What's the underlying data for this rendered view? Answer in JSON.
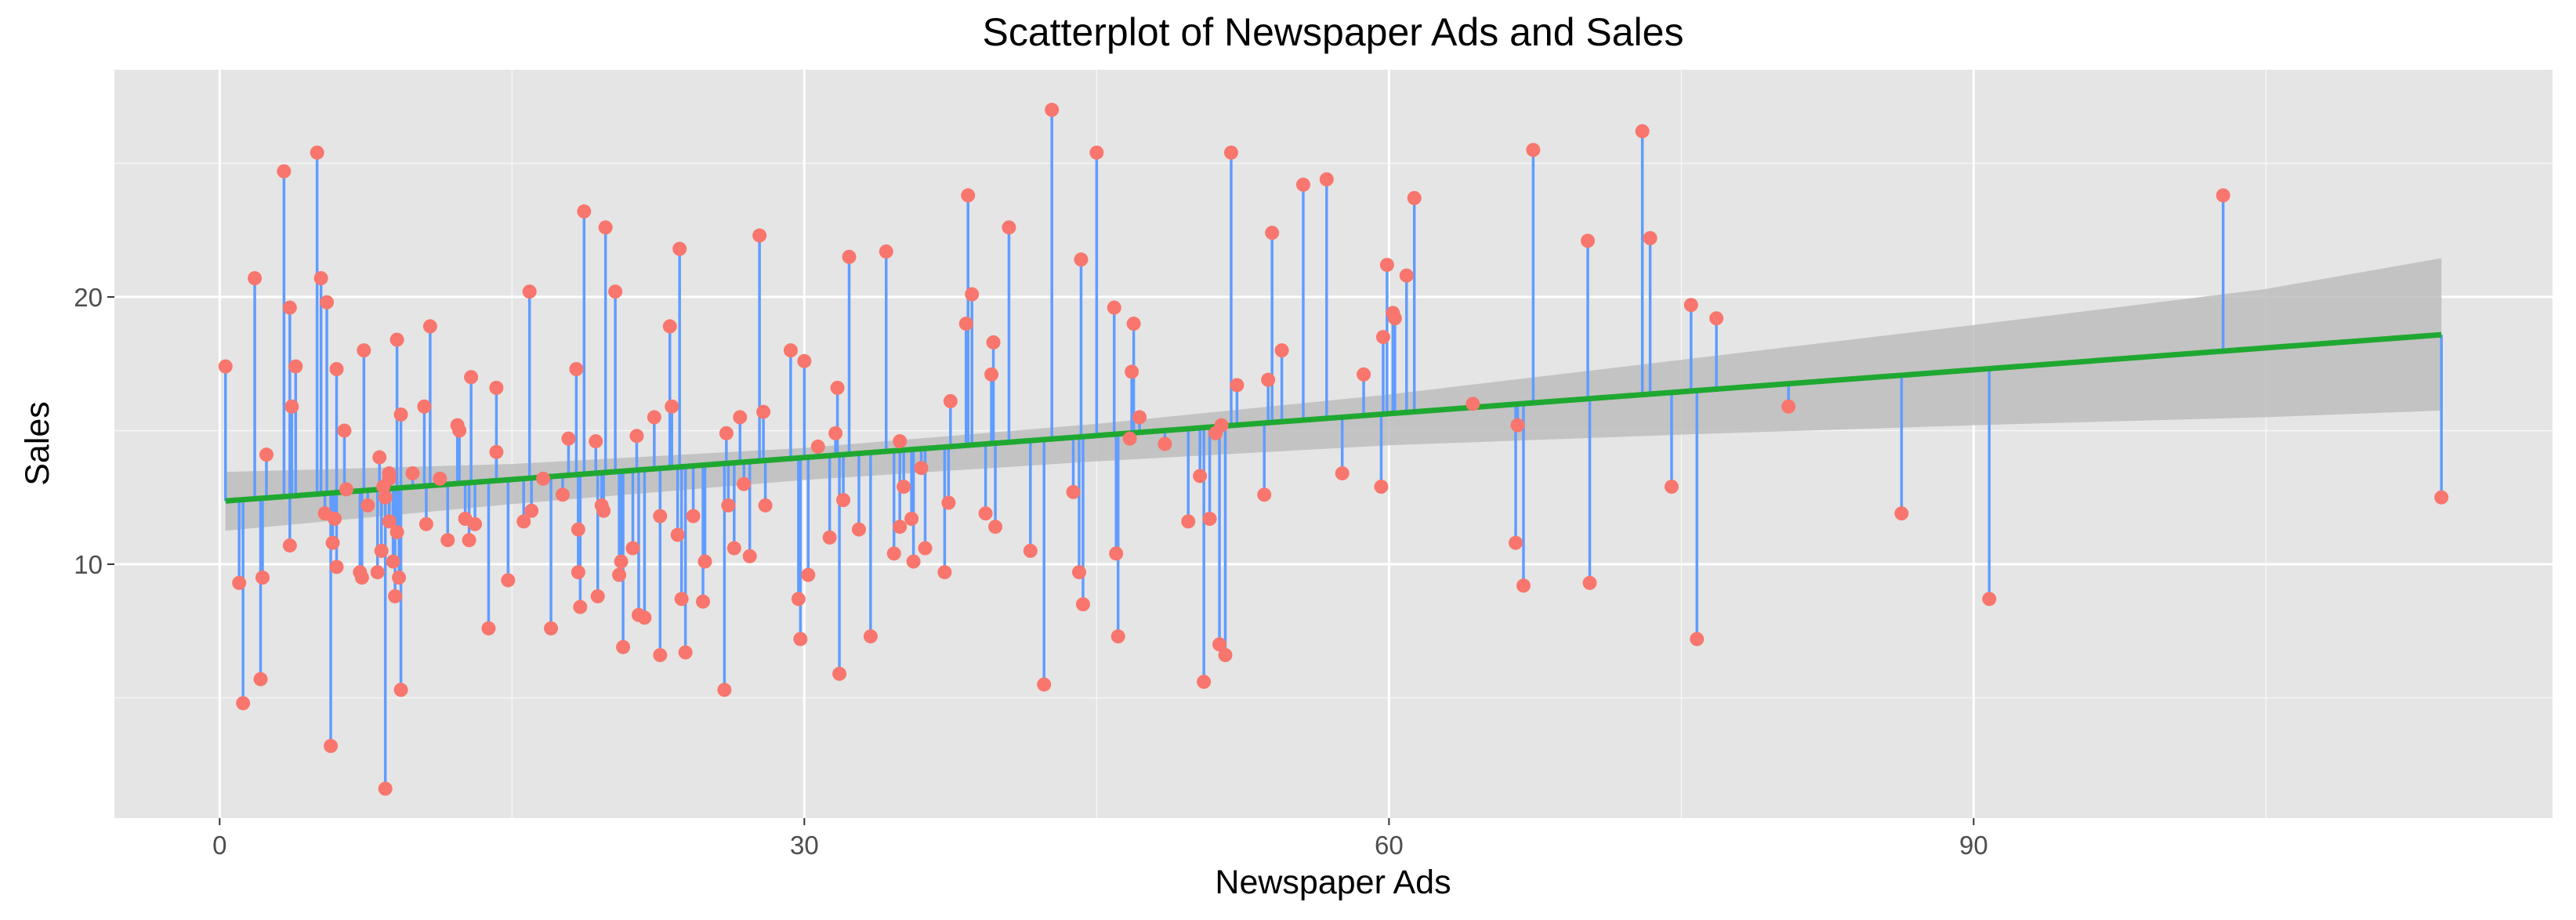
{
  "chart_data": {
    "type": "scatter",
    "title": "Scatterplot of Newspaper Ads and Sales",
    "xlabel": "Newspaper Ads",
    "ylabel": "Sales",
    "xlim": [
      -5.4,
      119.7
    ],
    "ylim": [
      0.5,
      28.5
    ],
    "x_ticks": [
      0,
      30,
      60,
      90
    ],
    "y_ticks": [
      10,
      20
    ],
    "grid": true,
    "colors": {
      "panel": "#e5e5e5",
      "grid": "#ffffff",
      "points": "#f8766d",
      "residuals": "#619cff",
      "fit": "#1fa831",
      "band": "#bdbdbd"
    },
    "fit": {
      "intercept": 12.35,
      "slope": 0.0547,
      "x_range": [
        0.3,
        114
      ]
    },
    "confidence_band": {
      "x": [
        0.3,
        15,
        30,
        45,
        60,
        75,
        90,
        105,
        114
      ],
      "lower": [
        11.25,
        12.25,
        13.15,
        13.85,
        14.45,
        14.85,
        15.2,
        15.5,
        15.75
      ],
      "upper": [
        13.45,
        13.75,
        14.35,
        15.25,
        16.35,
        17.65,
        18.95,
        20.3,
        21.45
      ]
    },
    "points": [
      [
        0.3,
        17.4
      ],
      [
        1,
        9.3
      ],
      [
        1.2,
        4.8
      ],
      [
        1.8,
        20.7
      ],
      [
        2.1,
        5.7
      ],
      [
        2.2,
        9.5
      ],
      [
        2.4,
        14.1
      ],
      [
        3.3,
        24.7
      ],
      [
        3.6,
        19.6
      ],
      [
        3.7,
        15.9
      ],
      [
        3.6,
        10.7
      ],
      [
        3.9,
        17.4
      ],
      [
        5,
        25.4
      ],
      [
        5.2,
        20.7
      ],
      [
        5.4,
        11.9
      ],
      [
        5.5,
        19.8
      ],
      [
        5.7,
        3.2
      ],
      [
        5.8,
        10.8
      ],
      [
        5.9,
        11.7
      ],
      [
        6,
        17.3
      ],
      [
        6,
        9.9
      ],
      [
        6.4,
        15
      ],
      [
        6.5,
        12.8
      ],
      [
        7.2,
        9.7
      ],
      [
        7.3,
        9.5
      ],
      [
        7.4,
        18
      ],
      [
        7.6,
        12.2
      ],
      [
        8.1,
        9.7
      ],
      [
        8.2,
        14
      ],
      [
        8.3,
        10.5
      ],
      [
        8.4,
        12.9
      ],
      [
        8.5,
        12.5
      ],
      [
        8.5,
        1.6
      ],
      [
        8.7,
        13.4
      ],
      [
        8.7,
        13.2
      ],
      [
        8.7,
        11.6
      ],
      [
        8.9,
        10.1
      ],
      [
        9,
        8.8
      ],
      [
        9.1,
        18.4
      ],
      [
        9.1,
        11.2
      ],
      [
        9.2,
        9.5
      ],
      [
        9.3,
        5.3
      ],
      [
        9.3,
        15.6
      ],
      [
        9.9,
        13.4
      ],
      [
        10.5,
        15.9
      ],
      [
        10.6,
        11.5
      ],
      [
        10.8,
        18.9
      ],
      [
        11.3,
        13.2
      ],
      [
        11.7,
        10.9
      ],
      [
        12.2,
        15.2
      ],
      [
        12.3,
        15
      ],
      [
        12.6,
        11.7
      ],
      [
        12.8,
        10.9
      ],
      [
        12.9,
        17
      ],
      [
        13.1,
        11.5
      ],
      [
        13.8,
        7.6
      ],
      [
        14.2,
        16.6
      ],
      [
        14.2,
        14.2
      ],
      [
        14.8,
        9.4
      ],
      [
        15.6,
        11.6
      ],
      [
        15.9,
        20.2
      ],
      [
        16,
        12
      ],
      [
        16.6,
        13.2
      ],
      [
        17,
        7.6
      ],
      [
        17.6,
        12.6
      ],
      [
        17.9,
        14.7
      ],
      [
        18.3,
        17.3
      ],
      [
        18.4,
        11.3
      ],
      [
        18.4,
        9.7
      ],
      [
        18.5,
        8.4
      ],
      [
        18.7,
        23.2
      ],
      [
        19.3,
        14.6
      ],
      [
        19.4,
        8.8
      ],
      [
        19.6,
        12.2
      ],
      [
        19.7,
        12
      ],
      [
        19.8,
        22.6
      ],
      [
        20.3,
        20.2
      ],
      [
        20.5,
        9.6
      ],
      [
        20.6,
        10.1
      ],
      [
        20.7,
        6.9
      ],
      [
        21.2,
        10.6
      ],
      [
        21.4,
        14.8
      ],
      [
        21.5,
        8.1
      ],
      [
        21.8,
        8
      ],
      [
        22.3,
        15.5
      ],
      [
        22.6,
        11.8
      ],
      [
        22.6,
        6.6
      ],
      [
        23.1,
        18.9
      ],
      [
        23.2,
        15.9
      ],
      [
        23.5,
        11.1
      ],
      [
        23.6,
        21.8
      ],
      [
        23.7,
        8.7
      ],
      [
        23.9,
        6.7
      ],
      [
        24.3,
        11.8
      ],
      [
        24.8,
        8.6
      ],
      [
        24.9,
        10.1
      ],
      [
        25.9,
        5.3
      ],
      [
        26,
        14.9
      ],
      [
        26.1,
        12.2
      ],
      [
        26.4,
        10.6
      ],
      [
        26.7,
        15.5
      ],
      [
        26.9,
        13
      ],
      [
        27.2,
        10.3
      ],
      [
        27.7,
        22.3
      ],
      [
        27.9,
        15.7
      ],
      [
        28,
        12.2
      ],
      [
        29.3,
        18
      ],
      [
        29.7,
        8.7
      ],
      [
        29.8,
        7.2
      ],
      [
        30,
        17.6
      ],
      [
        30.2,
        9.6
      ],
      [
        30.7,
        14.4
      ],
      [
        31.3,
        11
      ],
      [
        31.6,
        14.9
      ],
      [
        31.7,
        16.6
      ],
      [
        31.8,
        5.9
      ],
      [
        32,
        12.4
      ],
      [
        32.3,
        21.5
      ],
      [
        32.8,
        11.3
      ],
      [
        33.4,
        7.3
      ],
      [
        34.2,
        21.7
      ],
      [
        34.6,
        10.4
      ],
      [
        34.9,
        11.4
      ],
      [
        34.9,
        14.6
      ],
      [
        35.1,
        12.9
      ],
      [
        35.5,
        11.7
      ],
      [
        35.6,
        10.1
      ],
      [
        36,
        13.6
      ],
      [
        36.2,
        10.6
      ],
      [
        37.2,
        9.7
      ],
      [
        37.4,
        12.3
      ],
      [
        37.5,
        16.1
      ],
      [
        38.3,
        19
      ],
      [
        38.4,
        23.8
      ],
      [
        38.6,
        20.1
      ],
      [
        39.3,
        11.9
      ],
      [
        39.6,
        17.1
      ],
      [
        39.7,
        18.3
      ],
      [
        39.8,
        11.4
      ],
      [
        40.5,
        22.6
      ],
      [
        41.6,
        10.5
      ],
      [
        42.3,
        5.5
      ],
      [
        42.7,
        27
      ],
      [
        43.8,
        12.7
      ],
      [
        44.1,
        9.7
      ],
      [
        44.2,
        21.4
      ],
      [
        44.3,
        8.5
      ],
      [
        45,
        25.4
      ],
      [
        45.9,
        19.6
      ],
      [
        46,
        10.4
      ],
      [
        46.1,
        7.3
      ],
      [
        46.7,
        14.7
      ],
      [
        46.8,
        17.2
      ],
      [
        46.9,
        19
      ],
      [
        47.2,
        15.5
      ],
      [
        48.5,
        14.5
      ],
      [
        49.7,
        11.6
      ],
      [
        50.3,
        13.3
      ],
      [
        50.5,
        5.6
      ],
      [
        50.8,
        11.7
      ],
      [
        51.1,
        14.9
      ],
      [
        51.3,
        7
      ],
      [
        51.4,
        15.2
      ],
      [
        51.6,
        6.6
      ],
      [
        51.9,
        25.4
      ],
      [
        52.2,
        16.7
      ],
      [
        53.6,
        12.6
      ],
      [
        53.8,
        16.9
      ],
      [
        54,
        22.4
      ],
      [
        54.5,
        18
      ],
      [
        55.6,
        24.2
      ],
      [
        56.8,
        24.4
      ],
      [
        57.6,
        13.4
      ],
      [
        58.7,
        17.1
      ],
      [
        59.6,
        12.9
      ],
      [
        59.7,
        18.5
      ],
      [
        59.9,
        21.2
      ],
      [
        60.2,
        19.4
      ],
      [
        60.3,
        19.2
      ],
      [
        60.9,
        20.8
      ],
      [
        61.3,
        23.7
      ],
      [
        64.3,
        16
      ],
      [
        66.5,
        10.8
      ],
      [
        66.6,
        15.2
      ],
      [
        66.9,
        9.2
      ],
      [
        67.4,
        25.5
      ],
      [
        70.2,
        22.1
      ],
      [
        70.3,
        9.3
      ],
      [
        73,
        26.2
      ],
      [
        73.4,
        22.2
      ],
      [
        74.5,
        12.9
      ],
      [
        75.5,
        19.7
      ],
      [
        75.8,
        7.2
      ],
      [
        76.8,
        19.2
      ],
      [
        80.5,
        15.9
      ],
      [
        86.3,
        11.9
      ],
      [
        90.8,
        8.7
      ],
      [
        102.8,
        23.8
      ],
      [
        114,
        12.5
      ]
    ]
  }
}
